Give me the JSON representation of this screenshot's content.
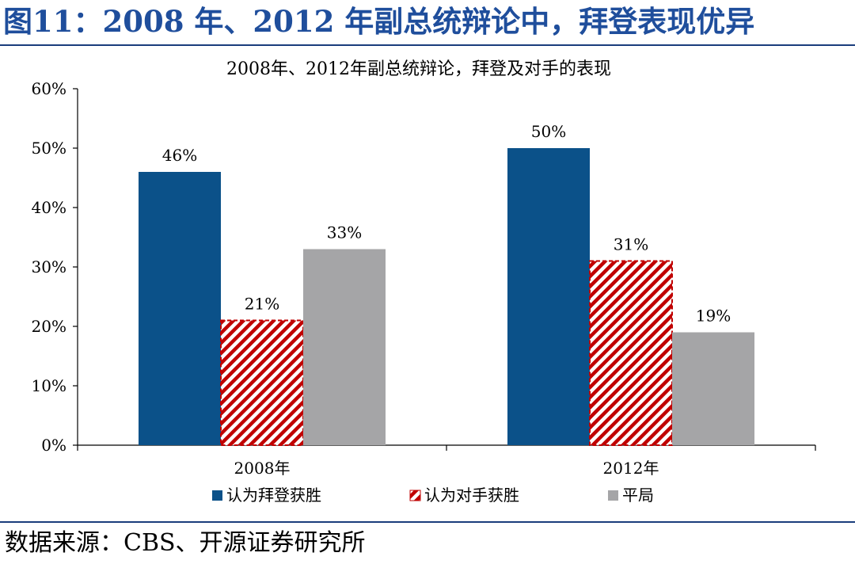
{
  "figure_title": "图11：2008 年、2012 年副总统辩论中，拜登表现优异",
  "source_note": "数据来源：CBS、开源证券研究所",
  "colors": {
    "biden": "#0b5189",
    "opponent": "#c00000",
    "tie": "#a5a5a7",
    "title": "#1f4e9c"
  },
  "chart_data": {
    "type": "bar",
    "title": "2008年、2012年副总统辩论，拜登及对手的表现",
    "categories": [
      "2008年",
      "2012年"
    ],
    "series": [
      {
        "name": "认为拜登获胜",
        "values": [
          46,
          50
        ],
        "labels": [
          "46%",
          "50%"
        ]
      },
      {
        "name": "认为对手获胜",
        "values": [
          21,
          31
        ],
        "labels": [
          "21%",
          "31%"
        ]
      },
      {
        "name": "平局",
        "values": [
          33,
          19
        ],
        "labels": [
          "33%",
          "19%"
        ]
      }
    ],
    "ylim": [
      0,
      60
    ],
    "yticks": [
      0,
      10,
      20,
      30,
      40,
      50,
      60
    ],
    "ytick_labels": [
      "0%",
      "10%",
      "20%",
      "30%",
      "40%",
      "50%",
      "60%"
    ],
    "xlabel": "",
    "ylabel": "",
    "legend": "bottom",
    "grid": false
  }
}
